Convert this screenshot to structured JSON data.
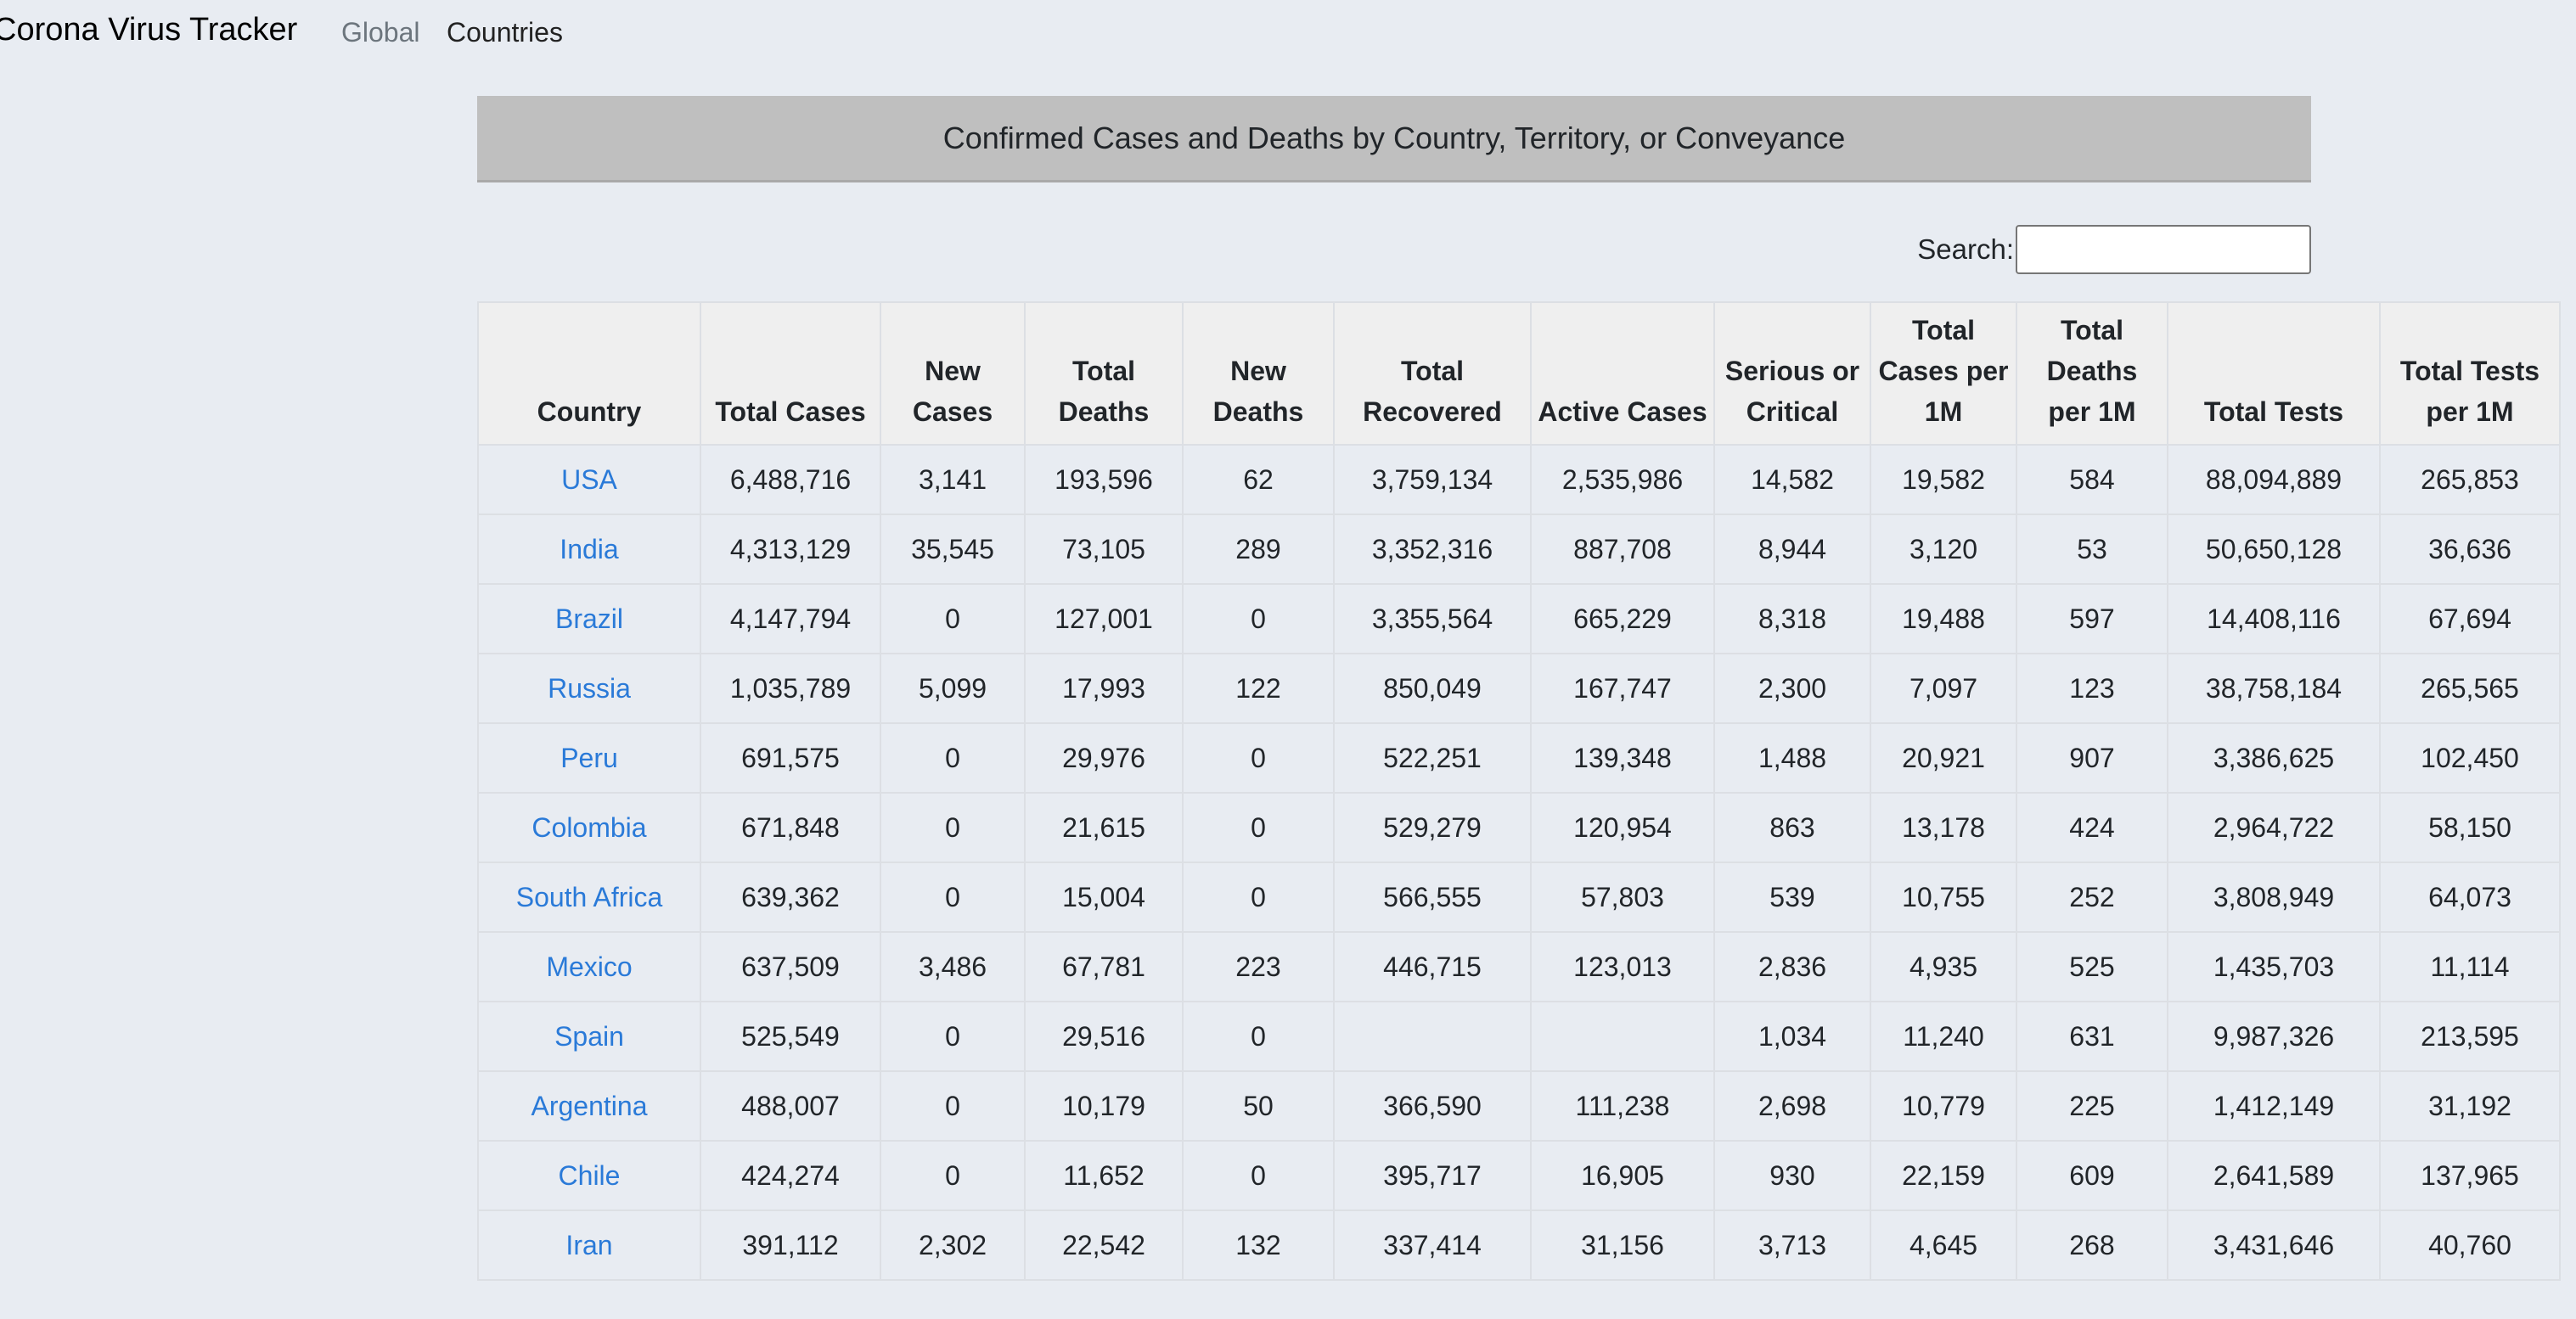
{
  "app": {
    "brand": "Corona Virus Tracker",
    "nav": [
      "Global",
      "Countries"
    ]
  },
  "header": {
    "title": "Confirmed Cases and Deaths by Country, Territory, or Conveyance"
  },
  "search": {
    "label": "Search:",
    "value": "",
    "placeholder": ""
  },
  "table": {
    "columns": [
      "Country",
      "Total Cases",
      "New Cases",
      "Total Deaths",
      "New Deaths",
      "Total Recovered",
      "Active Cases",
      "Serious or Critical",
      "Total Cases per 1M",
      "Total Deaths per 1M",
      "Total Tests",
      "Total Tests per 1M"
    ],
    "rows": [
      [
        "USA",
        "6,488,716",
        "3,141",
        "193,596",
        "62",
        "3,759,134",
        "2,535,986",
        "14,582",
        "19,582",
        "584",
        "88,094,889",
        "265,853"
      ],
      [
        "India",
        "4,313,129",
        "35,545",
        "73,105",
        "289",
        "3,352,316",
        "887,708",
        "8,944",
        "3,120",
        "53",
        "50,650,128",
        "36,636"
      ],
      [
        "Brazil",
        "4,147,794",
        "0",
        "127,001",
        "0",
        "3,355,564",
        "665,229",
        "8,318",
        "19,488",
        "597",
        "14,408,116",
        "67,694"
      ],
      [
        "Russia",
        "1,035,789",
        "5,099",
        "17,993",
        "122",
        "850,049",
        "167,747",
        "2,300",
        "7,097",
        "123",
        "38,758,184",
        "265,565"
      ],
      [
        "Peru",
        "691,575",
        "0",
        "29,976",
        "0",
        "522,251",
        "139,348",
        "1,488",
        "20,921",
        "907",
        "3,386,625",
        "102,450"
      ],
      [
        "Colombia",
        "671,848",
        "0",
        "21,615",
        "0",
        "529,279",
        "120,954",
        "863",
        "13,178",
        "424",
        "2,964,722",
        "58,150"
      ],
      [
        "South Africa",
        "639,362",
        "0",
        "15,004",
        "0",
        "566,555",
        "57,803",
        "539",
        "10,755",
        "252",
        "3,808,949",
        "64,073"
      ],
      [
        "Mexico",
        "637,509",
        "3,486",
        "67,781",
        "223",
        "446,715",
        "123,013",
        "2,836",
        "4,935",
        "525",
        "1,435,703",
        "11,114"
      ],
      [
        "Spain",
        "525,549",
        "0",
        "29,516",
        "0",
        "",
        "",
        "1,034",
        "11,240",
        "631",
        "9,987,326",
        "213,595"
      ],
      [
        "Argentina",
        "488,007",
        "0",
        "10,179",
        "50",
        "366,590",
        "111,238",
        "2,698",
        "10,779",
        "225",
        "1,412,149",
        "31,192"
      ],
      [
        "Chile",
        "424,274",
        "0",
        "11,652",
        "0",
        "395,717",
        "16,905",
        "930",
        "22,159",
        "609",
        "2,641,589",
        "137,965"
      ],
      [
        "Iran",
        "391,112",
        "2,302",
        "22,542",
        "132",
        "337,414",
        "31,156",
        "3,713",
        "4,645",
        "268",
        "3,431,646",
        "40,760"
      ]
    ]
  }
}
